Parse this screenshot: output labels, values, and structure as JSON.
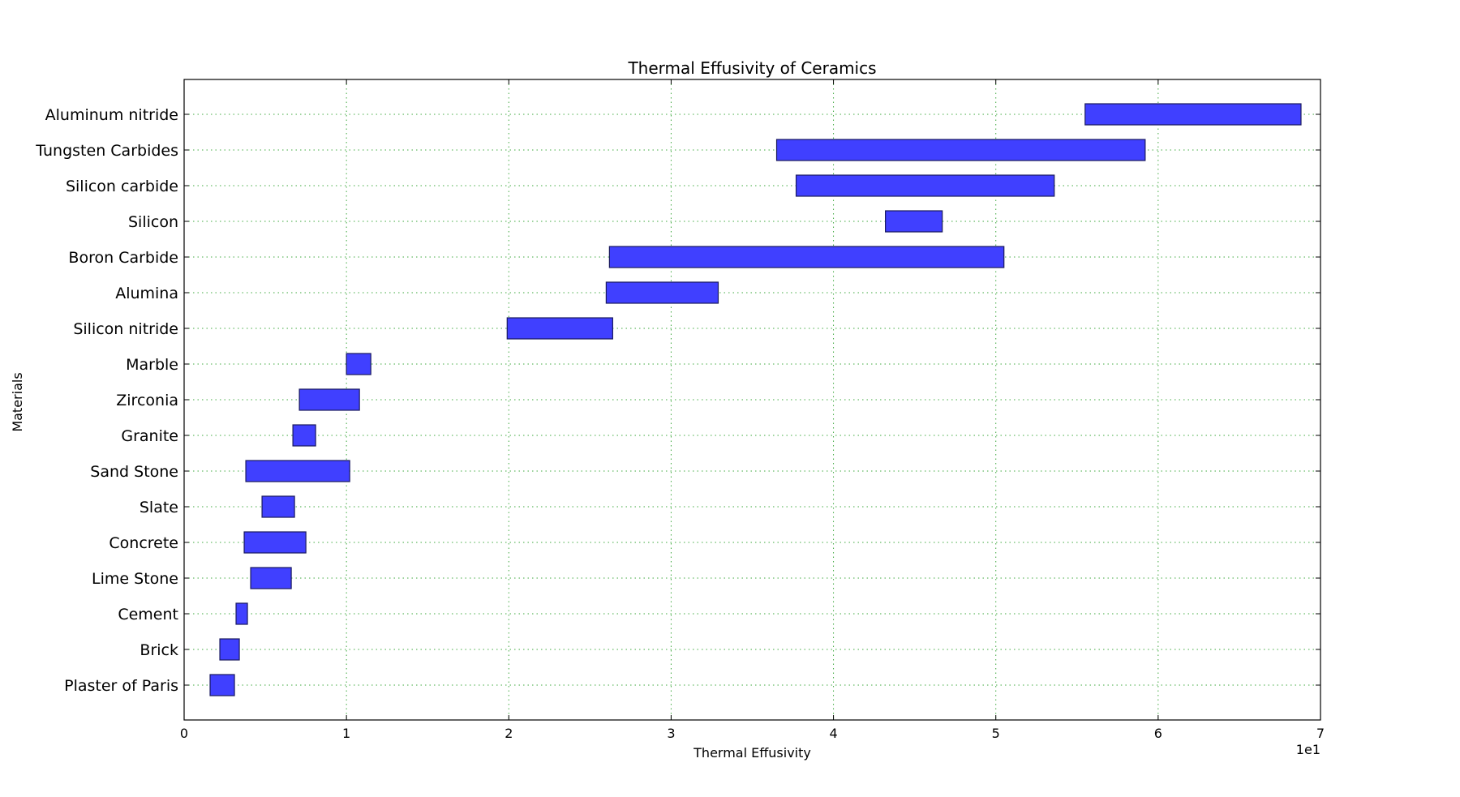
{
  "chart_data": {
    "type": "bar",
    "orientation": "horizontal-range",
    "title": "Thermal Effusivity of Ceramics",
    "xlabel": "Thermal Effusivity",
    "ylabel": "Materials",
    "x_offset_text": "1e1",
    "xlim": [
      0,
      7
    ],
    "x_ticks": [
      "0",
      "1",
      "2",
      "3",
      "4",
      "5",
      "6",
      "7"
    ],
    "grid": true,
    "categories": [
      "Plaster of Paris",
      "Brick",
      "Cement",
      "Lime Stone",
      "Concrete",
      "Slate",
      "Sand Stone",
      "Granite",
      "Zirconia",
      "Marble",
      "Silicon nitride",
      "Alumina",
      "Boron Carbide",
      "Silicon",
      "Silicon carbide",
      "Tungsten Carbides",
      "Aluminum nitride"
    ],
    "ranges": [
      [
        0.16,
        0.31
      ],
      [
        0.22,
        0.34
      ],
      [
        0.32,
        0.39
      ],
      [
        0.41,
        0.66
      ],
      [
        0.37,
        0.75
      ],
      [
        0.48,
        0.68
      ],
      [
        0.38,
        1.02
      ],
      [
        0.67,
        0.81
      ],
      [
        0.71,
        1.08
      ],
      [
        1.0,
        1.15
      ],
      [
        1.99,
        2.64
      ],
      [
        2.6,
        3.29
      ],
      [
        2.62,
        5.05
      ],
      [
        4.32,
        4.67
      ],
      [
        3.77,
        5.36
      ],
      [
        3.65,
        5.92
      ],
      [
        5.55,
        6.88
      ]
    ]
  }
}
